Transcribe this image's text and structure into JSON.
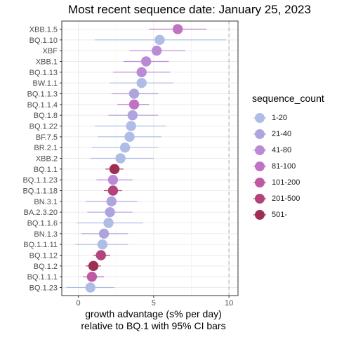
{
  "chart_data": {
    "type": "scatter",
    "title": "Most recent sequence date: January 25, 2023",
    "xlabel_line1": "growth advantage (s% per day)",
    "xlabel_line2": "relative to  BQ.1  with 95% CI bars",
    "xlim": [
      -1.1,
      10.6
    ],
    "x_ticks": [
      0,
      5,
      10
    ],
    "reference_line_x": 10,
    "grid": true,
    "legend": {
      "title": "sequence_count",
      "placement": "right",
      "entries": [
        {
          "label": "1-20",
          "color": "#aebde6"
        },
        {
          "label": "21-40",
          "color": "#b0a4de"
        },
        {
          "label": "41-80",
          "color": "#bb8ad6"
        },
        {
          "label": "81-100",
          "color": "#c073c4"
        },
        {
          "label": "101-200",
          "color": "#bd5aa2"
        },
        {
          "label": "201-500",
          "color": "#b1447b"
        },
        {
          "label": "501-",
          "color": "#9f2f52"
        }
      ]
    },
    "variants": [
      {
        "name": "XBB.1.5",
        "value": 6.6,
        "lo": 4.7,
        "hi": 8.5,
        "bin": 3
      },
      {
        "name": "BQ.1.10",
        "value": 5.4,
        "lo": 1.1,
        "hi": 9.8,
        "bin": 0
      },
      {
        "name": "XBF",
        "value": 5.2,
        "lo": 3.4,
        "hi": 7.1,
        "bin": 2
      },
      {
        "name": "XBB.1",
        "value": 4.5,
        "lo": 3.0,
        "hi": 6.0,
        "bin": 2
      },
      {
        "name": "BQ.1.13",
        "value": 4.2,
        "lo": 2.3,
        "hi": 6.1,
        "bin": 2
      },
      {
        "name": "BW.1.1",
        "value": 4.2,
        "lo": 2.1,
        "hi": 6.3,
        "bin": 0
      },
      {
        "name": "BQ.1.1.3",
        "value": 3.7,
        "lo": 2.2,
        "hi": 5.3,
        "bin": 1
      },
      {
        "name": "BQ.1.1.4",
        "value": 3.7,
        "lo": 2.6,
        "hi": 4.7,
        "bin": 3
      },
      {
        "name": "BQ.1.8",
        "value": 3.6,
        "lo": 2.0,
        "hi": 5.3,
        "bin": 1
      },
      {
        "name": "BQ.1.22",
        "value": 3.5,
        "lo": 1.1,
        "hi": 5.8,
        "bin": 0
      },
      {
        "name": "BF.7.5",
        "value": 3.4,
        "lo": 1.3,
        "hi": 5.5,
        "bin": 0
      },
      {
        "name": "BR.2.1",
        "value": 3.1,
        "lo": 0.9,
        "hi": 5.3,
        "bin": 0
      },
      {
        "name": "XBB.2",
        "value": 2.8,
        "lo": 0.8,
        "hi": 5.0,
        "bin": 0
      },
      {
        "name": "BQ.1.1",
        "value": 2.4,
        "lo": 1.8,
        "hi": 3.0,
        "bin": 6
      },
      {
        "name": "BQ.1.1.23",
        "value": 2.3,
        "lo": 1.2,
        "hi": 3.6,
        "bin": 2
      },
      {
        "name": "BQ.1.1.18",
        "value": 2.3,
        "lo": 1.7,
        "hi": 2.9,
        "bin": 5
      },
      {
        "name": "BN.3.1",
        "value": 2.2,
        "lo": 0.5,
        "hi": 3.9,
        "bin": 1
      },
      {
        "name": "BA.2.3.20",
        "value": 2.1,
        "lo": 0.6,
        "hi": 3.6,
        "bin": 1
      },
      {
        "name": "BQ.1.1.6",
        "value": 2.0,
        "lo": -0.1,
        "hi": 4.3,
        "bin": 0
      },
      {
        "name": "BN.1.3",
        "value": 1.7,
        "lo": 0.2,
        "hi": 3.3,
        "bin": 1
      },
      {
        "name": "BQ.1.1.11",
        "value": 1.6,
        "lo": -0.2,
        "hi": 3.3,
        "bin": 0
      },
      {
        "name": "BQ.1.12",
        "value": 1.5,
        "lo": 1.0,
        "hi": 2.1,
        "bin": 5
      },
      {
        "name": "BQ.1.2",
        "value": 1.0,
        "lo": 0.5,
        "hi": 1.5,
        "bin": 6
      },
      {
        "name": "BQ.1.1.1",
        "value": 0.9,
        "lo": 0.3,
        "hi": 1.7,
        "bin": 4
      },
      {
        "name": "BQ.1.23",
        "value": 0.8,
        "lo": -0.8,
        "hi": 2.4,
        "bin": 0
      }
    ]
  }
}
